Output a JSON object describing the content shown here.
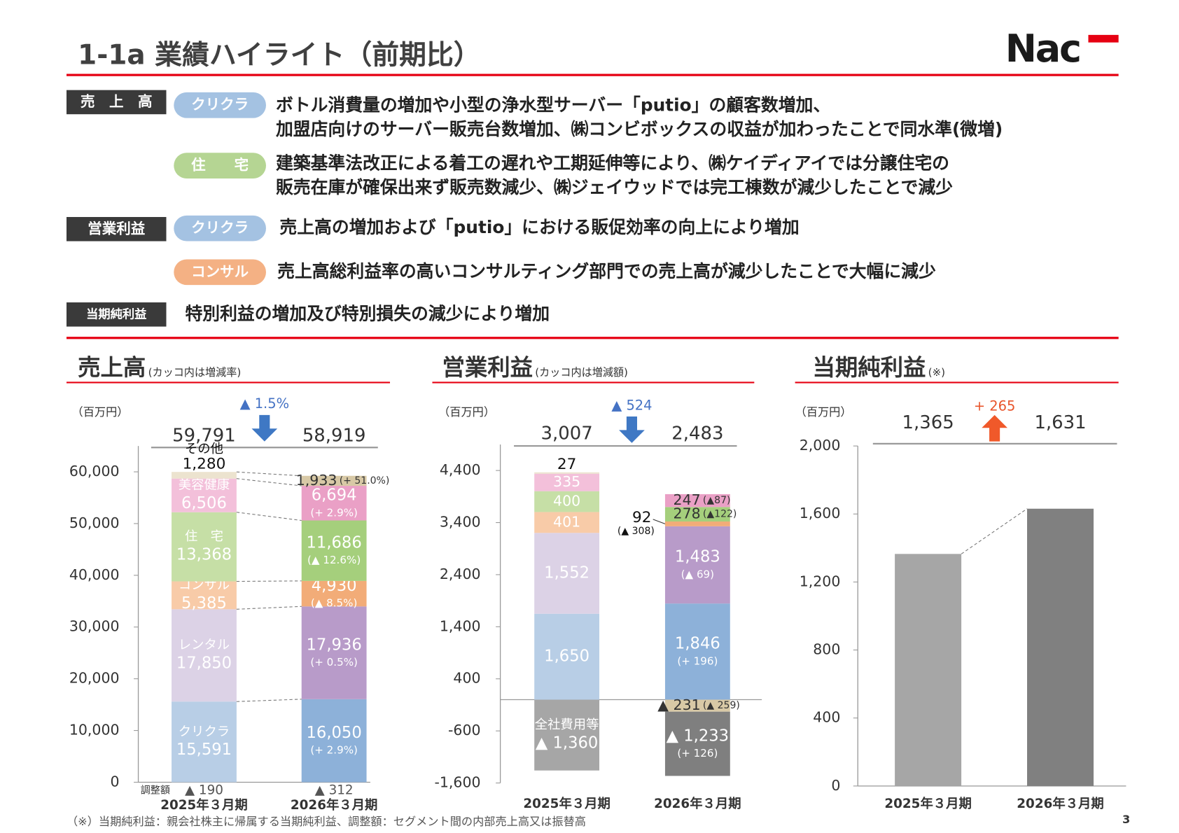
{
  "header": {
    "title": "1-1a 業績ハイライト（前期比）",
    "logo": "Nac"
  },
  "highlights": [
    {
      "label": "売　上　高",
      "items": [
        {
          "tag": "クリクラ",
          "lines": [
            "ボトル消費量の増加や小型の浄水型サーバー「putio」の顧客数増加、",
            "加盟店向けのサーバー販売台数増加、㈱コンビボックスの収益が加わったことで同水準(微増)"
          ]
        },
        {
          "tag": "住　　宅",
          "lines": [
            "建築基準法改正による着工の遅れや工期延伸等により、㈱ケイディアイでは分譲住宅の",
            "販売在庫が確保出来ず販売数減少、㈱ジェイウッドでは完工棟数が減少したことで減少"
          ]
        }
      ]
    },
    {
      "label": "営業利益",
      "items": [
        {
          "tag": "クリクラ",
          "lines": [
            "売上高の増加および「putio」における販促効率の向上により増加"
          ]
        },
        {
          "tag": "コンサル",
          "lines": [
            "売上高総利益率の高いコンサルティング部門での売上高が減少したことで大幅に減少"
          ]
        }
      ]
    },
    {
      "label": "当期純利益",
      "items": [
        {
          "lines": [
            "特別利益の増加及び特別損失の減少により増加"
          ]
        }
      ]
    }
  ],
  "chart_data": [
    {
      "type": "stacked_bar",
      "title": "売上高",
      "subtitle": "(カッコ内は増減率)",
      "unit": "（百万円）",
      "categories": [
        "2025年３月期",
        "2026年３月期"
      ],
      "series": [
        {
          "name": "クリクラ",
          "colors": [
            "#b8cee6",
            "#8db1d9"
          ],
          "values": [
            15591,
            16050
          ],
          "value_labels": [
            "15,591",
            "16,050"
          ],
          "changes": [
            null,
            "(+ 2.9%)"
          ]
        },
        {
          "name": "レンタル",
          "colors": [
            "#dcd2e6",
            "#b89bc9"
          ],
          "values": [
            17850,
            17936
          ],
          "value_labels": [
            "17,850",
            "17,936"
          ],
          "changes": [
            null,
            "(+ 0.5%)"
          ]
        },
        {
          "name": "コンサル",
          "colors": [
            "#f8cba8",
            "#f2ac78"
          ],
          "values": [
            5385,
            4930
          ],
          "value_labels": [
            "5,385",
            "4,930"
          ],
          "changes": [
            null,
            "(▲ 8.5%)"
          ]
        },
        {
          "name": "住　宅",
          "colors": [
            "#c6dfa6",
            "#a5cf7c"
          ],
          "values": [
            13368,
            11686
          ],
          "value_labels": [
            "13,368",
            "11,686"
          ],
          "changes": [
            null,
            "(▲ 12.6%)"
          ]
        },
        {
          "name": "美容健康",
          "colors": [
            "#f3c0da",
            "#eaa0c6"
          ],
          "values": [
            6506,
            6694
          ],
          "value_labels": [
            "6,506",
            "6,694"
          ],
          "changes": [
            null,
            "(+ 2.9%)"
          ]
        },
        {
          "name": "その他",
          "colors": [
            "#ece3cf",
            "#d8c9a6"
          ],
          "values": [
            1280,
            1933
          ],
          "value_labels": [
            "1,280",
            "1,933"
          ],
          "changes": [
            null,
            "(+ 51.0%)"
          ]
        }
      ],
      "adjustment": {
        "name": "調整額",
        "values": [
          -190,
          -312
        ],
        "value_labels": [
          "▲ 190",
          "▲ 312"
        ]
      },
      "totals": [
        59791,
        58919
      ],
      "total_labels": [
        "59,791",
        "58,919"
      ],
      "change_label": "▲ 1.5%",
      "ylim": [
        0,
        65000
      ],
      "yticks": [
        0,
        {
          "value": 10000,
          "label": "10,000"
        },
        {
          "value": 20000,
          "label": "20,000"
        },
        {
          "value": 30000,
          "label": "30,000"
        },
        {
          "value": 40000,
          "label": "40,000"
        },
        {
          "value": 50000,
          "label": "50,000"
        },
        {
          "value": 60000,
          "label": "60,000"
        }
      ],
      "connectors": true
    },
    {
      "type": "stacked_bar",
      "title": "営業利益",
      "subtitle": "(カッコ内は増減額)",
      "unit": "（百万円）",
      "categories": [
        "2025年３月期",
        "2026年３月期"
      ],
      "series": [
        {
          "colors": [
            "#b8cee6",
            "#8db1d9"
          ],
          "values": [
            1650,
            1846
          ],
          "value_labels": [
            "1,650",
            "1,846"
          ],
          "changes": [
            null,
            "(+ 196)"
          ]
        },
        {
          "colors": [
            "#dcd2e6",
            "#b89bc9"
          ],
          "values": [
            1552,
            1483
          ],
          "value_labels": [
            "1,552",
            "1,483"
          ],
          "changes": [
            null,
            "(▲ 69)"
          ]
        },
        {
          "colors": [
            "#f8cba8",
            "#f2ac78"
          ],
          "values": [
            401,
            92
          ],
          "value_labels": [
            "401",
            "92"
          ],
          "changes": [
            null,
            "(▲ 308)"
          ]
        },
        {
          "colors": [
            "#c6dfa6",
            "#a5cf7c"
          ],
          "values": [
            400,
            278
          ],
          "value_labels": [
            "400",
            "278"
          ],
          "changes": [
            null,
            "(▲122)"
          ]
        },
        {
          "colors": [
            "#f3c0da",
            "#eaa0c6"
          ],
          "values": [
            335,
            247
          ],
          "value_labels": [
            "335",
            "247"
          ],
          "changes": [
            null,
            "(▲87)"
          ]
        },
        {
          "colors": [
            "#ece3cf",
            "#d8c9a6"
          ],
          "values": [
            27,
            -231
          ],
          "value_labels": [
            "27",
            "▲ 231"
          ],
          "changes": [
            null,
            "(▲ 259)"
          ]
        },
        {
          "name": "全社費用等",
          "colors": [
            "#a6a6a6",
            "#7f7f7f"
          ],
          "values": [
            -1360,
            -1233
          ],
          "value_labels": [
            "▲ 1,360",
            "▲ 1,233"
          ],
          "changes": [
            null,
            "(+ 126)"
          ]
        }
      ],
      "totals": [
        3007,
        2483
      ],
      "total_labels": [
        "3,007",
        "2,483"
      ],
      "change_label": "▲ 524",
      "ylim": [
        -1600,
        4900
      ],
      "yticks": [
        {
          "value": -1600,
          "label": "-1,600"
        },
        -600,
        400,
        {
          "value": 1400,
          "label": "1,400"
        },
        {
          "value": 2400,
          "label": "2,400"
        },
        {
          "value": 3400,
          "label": "3,400"
        },
        {
          "value": 4400,
          "label": "4,400"
        }
      ],
      "connectors": false
    },
    {
      "type": "bar",
      "title": "当期純利益",
      "subtitle": "(※)",
      "unit": "（百万円）",
      "categories": [
        "2025年３月期",
        "2026年３月期"
      ],
      "values": [
        1365,
        1631
      ],
      "value_labels": [
        "1,365",
        "1,631"
      ],
      "colors": [
        "#a6a6a6",
        "#808080"
      ],
      "change_label": "+ 265",
      "ylim": [
        0,
        2000
      ],
      "yticks": [
        0,
        400,
        800,
        {
          "value": 1200,
          "label": "1,200"
        },
        {
          "value": 1600,
          "label": "1,600"
        },
        {
          "value": 2000,
          "label": "2,000"
        }
      ],
      "connectors": true
    }
  ],
  "footnote": "（※）当期純利益：親会社株主に帰属する当期純利益、調整額：セグメント間の内部売上高又は振替高",
  "page_number": "3"
}
